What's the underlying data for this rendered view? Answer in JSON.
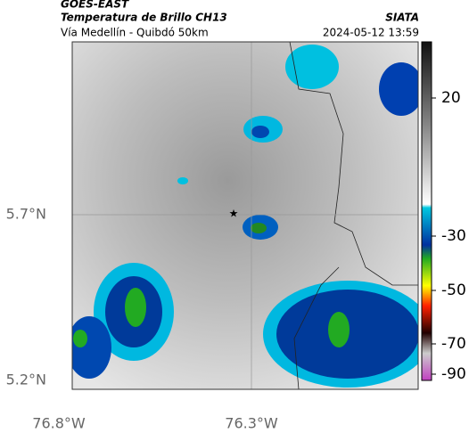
{
  "header": {
    "source": "GOES-EAST",
    "title": "Temperatura de Brillo CH13",
    "org": "SIATA",
    "subtitle": "Vía Medellín - Quibdó 50km",
    "datetime": "2024-05-12 13:59"
  },
  "map": {
    "lat_labels": [
      "5.7°N",
      "5.2°N"
    ],
    "lon_labels": [
      "76.8°W",
      "76.3°W"
    ]
  },
  "colorbar": {
    "ticks": [
      "20",
      "-30",
      "-50",
      "-70",
      "-90"
    ]
  }
}
